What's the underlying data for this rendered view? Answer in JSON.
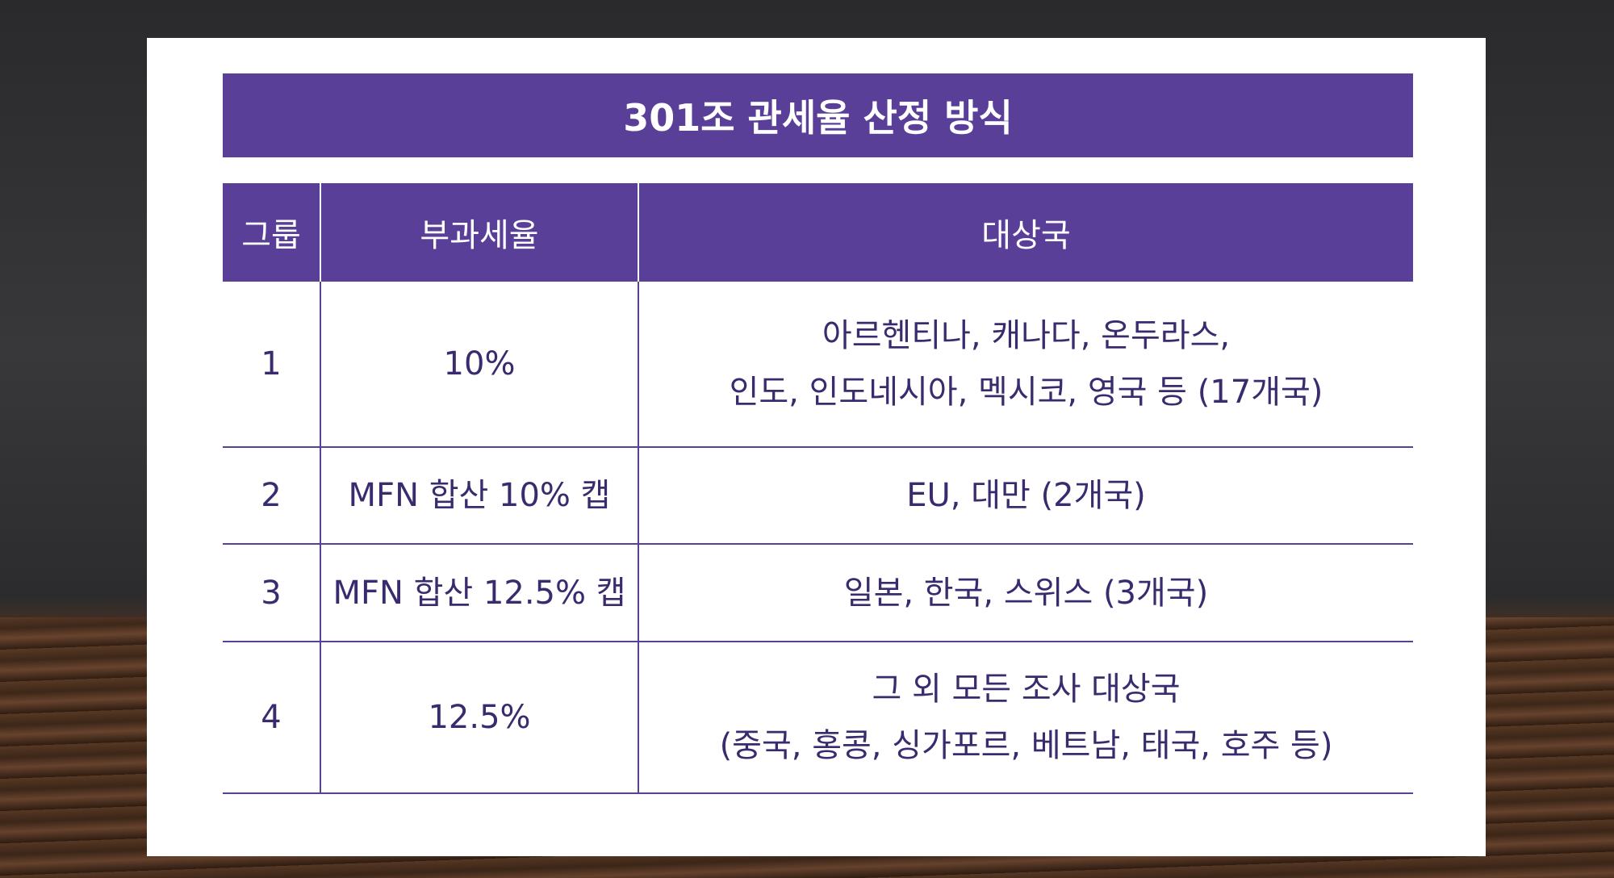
{
  "title": "301조 관세율 산정 방식",
  "table": {
    "header": [
      "그룹",
      "부과세율",
      "대상국"
    ],
    "rows": [
      [
        "1",
        "10%",
        [
          "아르헨티나, 캐나다, 온두라스,",
          "인도, 인도네시아, 멕시코, 영국 등 (17개국)"
        ]
      ],
      [
        "2",
        "MFN 합산 10% 캡",
        [
          "EU, 대만 (2개국)"
        ]
      ],
      [
        "3",
        "MFN 합산 12.5% 캡",
        [
          "일본, 한국, 스위스 (3개국)"
        ]
      ],
      [
        "4",
        "12.5%",
        [
          "그 외 모든 조사 대상국",
          "(중국, 홍콩, 싱가포르, 베트남, 태국, 호주 등)"
        ]
      ]
    ]
  }
}
